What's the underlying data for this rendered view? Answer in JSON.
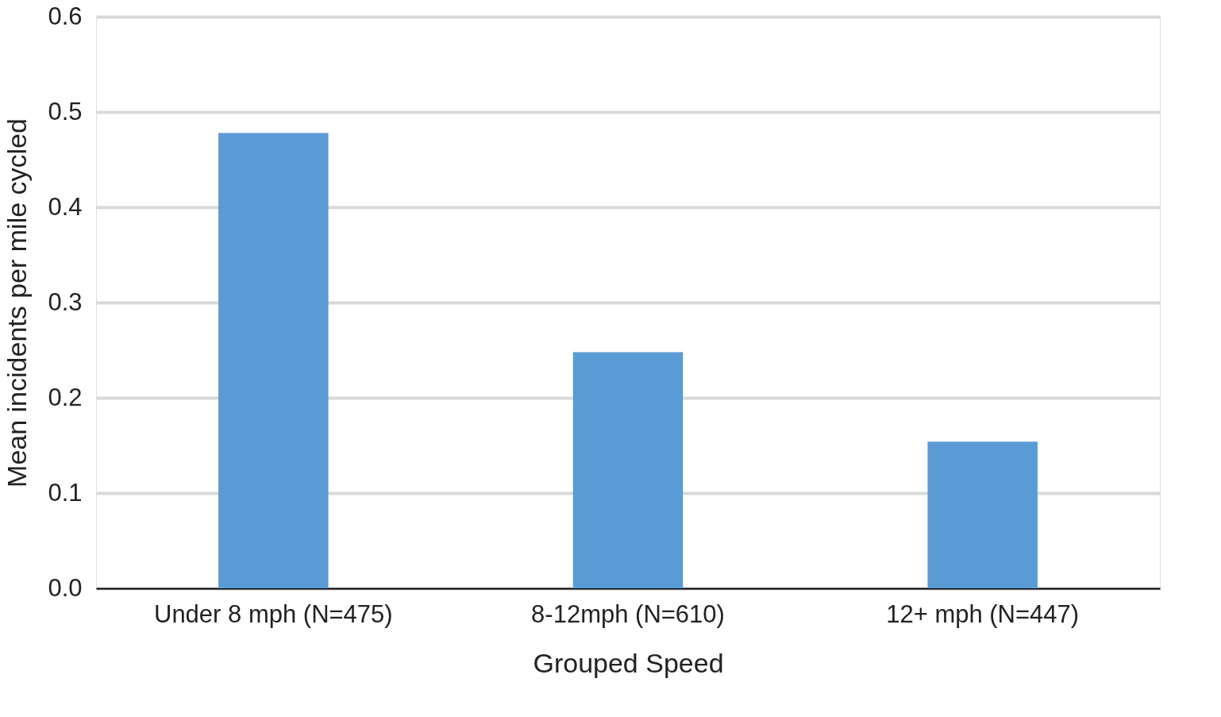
{
  "chart_data": {
    "type": "bar",
    "xlabel": "Grouped Speed",
    "ylabel": "Mean incidents per mile cycled",
    "categories": [
      "Under 8 mph (N=475)",
      "8-12mph (N=610)",
      "12+ mph (N=447)"
    ],
    "values": [
      0.478,
      0.248,
      0.154
    ],
    "color": "#5b9bd5",
    "ylim": [
      0,
      0.6
    ],
    "yticks": [
      {
        "value": 0,
        "label": "0.0"
      },
      {
        "value": 0.1,
        "label": "0.1"
      },
      {
        "value": 0.2,
        "label": "0.2"
      },
      {
        "value": 0.3,
        "label": "0.3"
      },
      {
        "value": 0.4,
        "label": "0.4"
      },
      {
        "value": 0.5,
        "label": "0.5"
      },
      {
        "value": 0.6,
        "label": "0.6"
      }
    ],
    "grid": "y",
    "legend": false
  }
}
